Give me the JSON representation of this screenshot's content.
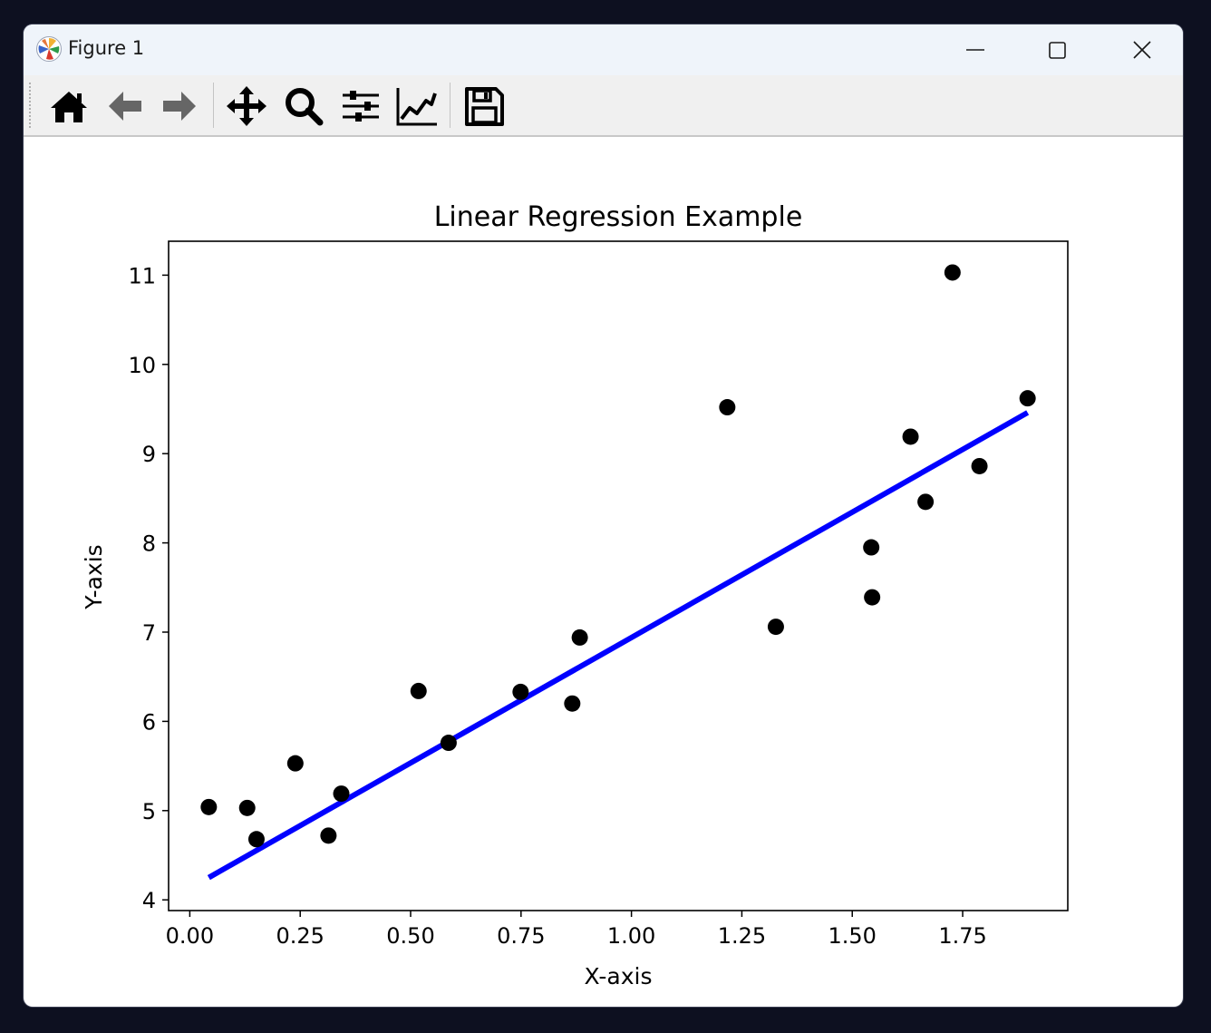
{
  "window": {
    "title": "Figure 1",
    "controls": [
      "minimize-icon",
      "maximize-icon",
      "close-icon"
    ]
  },
  "toolbar": {
    "buttons": [
      {
        "name": "home-icon",
        "label": "Home"
      },
      {
        "name": "back-arrow-icon",
        "label": "Back"
      },
      {
        "name": "forward-arrow-icon",
        "label": "Forward"
      },
      {
        "name": "pan-move-icon",
        "label": "Pan"
      },
      {
        "name": "zoom-magnifier-icon",
        "label": "Zoom"
      },
      {
        "name": "subplots-sliders-icon",
        "label": "Subplots"
      },
      {
        "name": "axes-edit-icon",
        "label": "Customize"
      },
      {
        "name": "save-floppy-icon",
        "label": "Save"
      }
    ]
  },
  "chart_data": {
    "type": "scatter",
    "title": "Linear Regression Example",
    "xlabel": "X-axis",
    "ylabel": "Y-axis",
    "xlim": [
      -0.048,
      1.988
    ],
    "ylim": [
      3.88,
      11.38
    ],
    "xticks": [
      0.0,
      0.25,
      0.5,
      0.75,
      1.0,
      1.25,
      1.5,
      1.75
    ],
    "xtick_labels": [
      "0.00",
      "0.25",
      "0.50",
      "0.75",
      "1.00",
      "1.25",
      "1.50",
      "1.75"
    ],
    "yticks": [
      4,
      5,
      6,
      7,
      8,
      9,
      10,
      11
    ],
    "ytick_labels": [
      "4",
      "5",
      "6",
      "7",
      "8",
      "9",
      "10",
      "11"
    ],
    "grid": false,
    "series": [
      {
        "kind": "scatter",
        "color": "#000000",
        "points": [
          [
            0.043,
            5.04
          ],
          [
            0.13,
            5.03
          ],
          [
            0.151,
            4.68
          ],
          [
            0.239,
            5.53
          ],
          [
            0.314,
            4.72
          ],
          [
            0.343,
            5.19
          ],
          [
            0.518,
            6.34
          ],
          [
            0.586,
            5.76
          ],
          [
            0.749,
            6.33
          ],
          [
            0.866,
            6.2
          ],
          [
            0.883,
            6.94
          ],
          [
            1.217,
            9.52
          ],
          [
            1.327,
            7.06
          ],
          [
            1.543,
            7.95
          ],
          [
            1.545,
            7.39
          ],
          [
            1.632,
            9.19
          ],
          [
            1.666,
            8.46
          ],
          [
            1.727,
            11.03
          ],
          [
            1.788,
            8.86
          ],
          [
            1.897,
            9.62
          ]
        ]
      },
      {
        "kind": "line",
        "color": "#0000ff",
        "points": [
          [
            0.043,
            4.25
          ],
          [
            1.897,
            9.46
          ]
        ]
      }
    ]
  }
}
